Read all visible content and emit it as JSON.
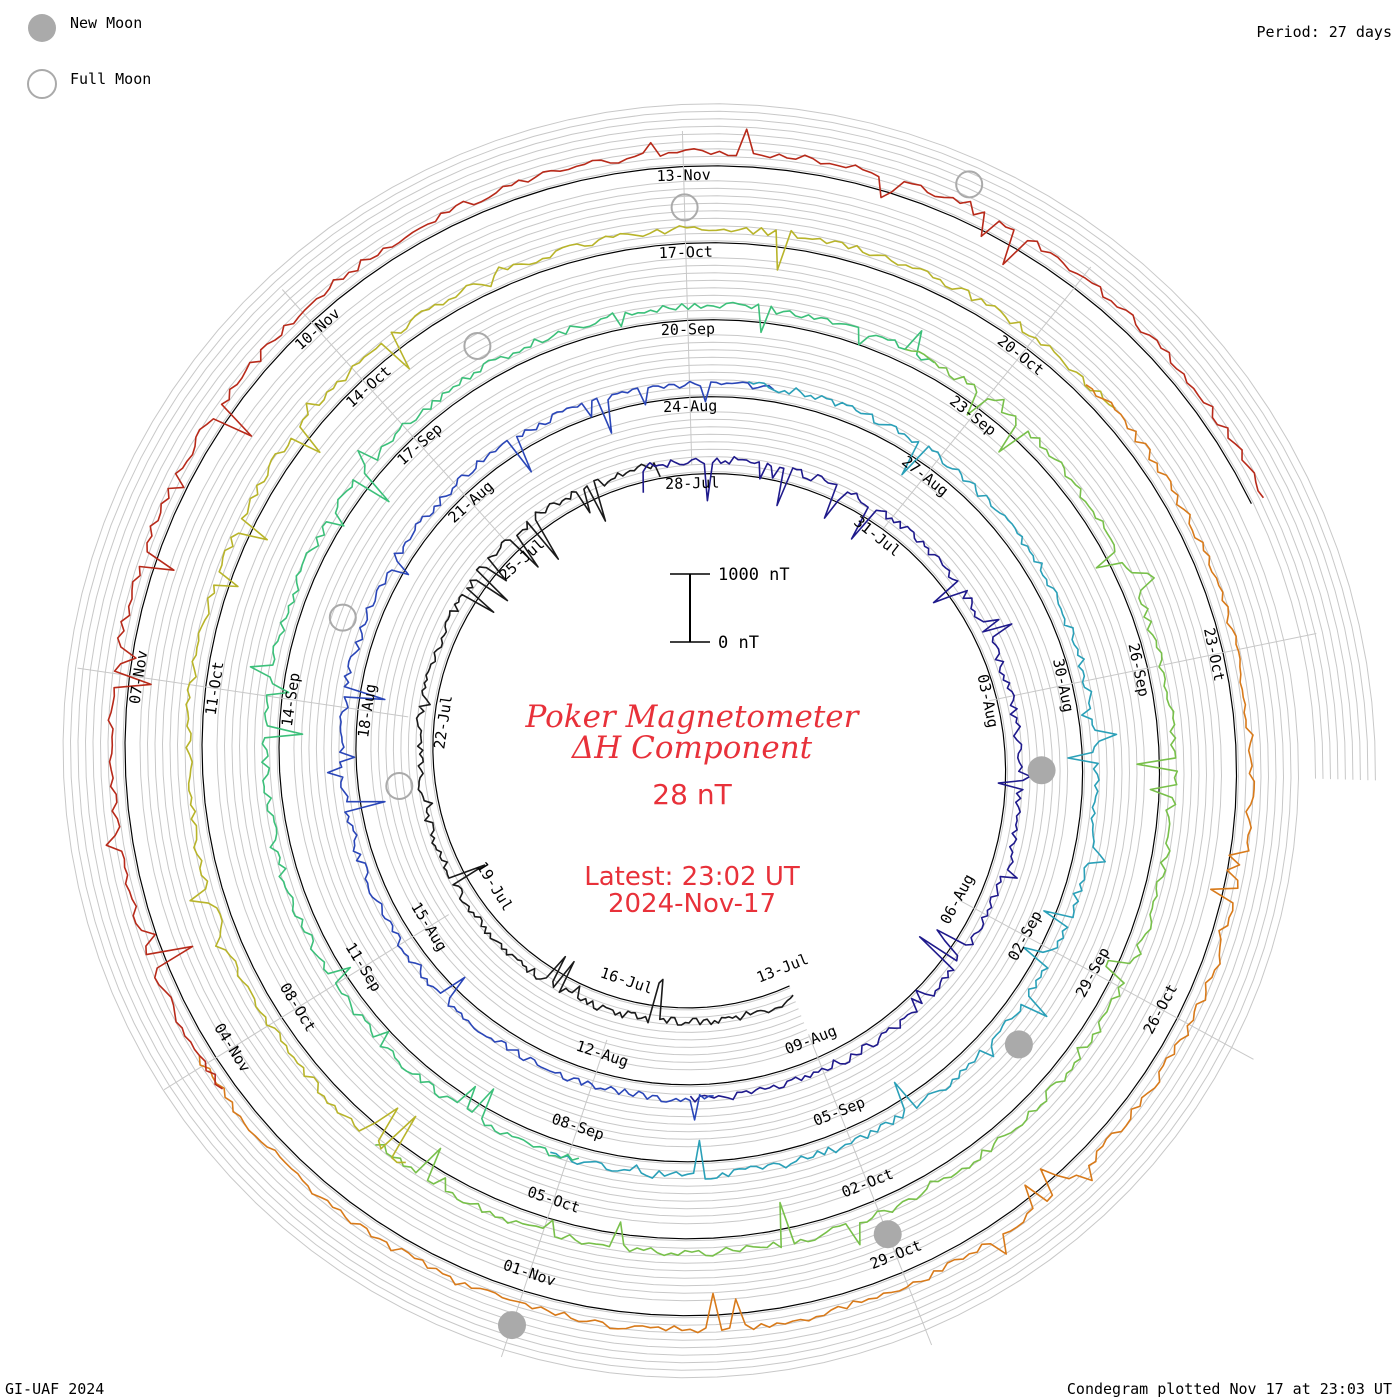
{
  "legend": {
    "new_moon": "New Moon",
    "full_moon": "Full Moon"
  },
  "period_label": "Period: 27 days",
  "scale": {
    "top_label": "1000 nT",
    "bottom_label": "0 nT"
  },
  "title_line1": "Poker Magnetometer",
  "title_line2": "ΔH Component",
  "current_value": "28 nT",
  "latest_time": "Latest: 23:02 UT",
  "latest_date": "2024-Nov-17",
  "footer_left": "GI-UAF 2024",
  "footer_right": "Condegram plotted Nov 17 at 23:03 UT",
  "colors": {
    "title_red": "#e8313a",
    "grid": "#c8c8c8",
    "moon_fill": "#aaaaaa"
  },
  "chart_data": {
    "type": "line",
    "title": "Poker Magnetometer ΔH Component",
    "period_days": 27,
    "scale_nT": [
      0,
      1000
    ],
    "series": [
      {
        "color": "#1a1a1a",
        "start": "2024-Jul-13"
      },
      {
        "color": "#1f1a8c",
        "start": "2024-Jul-13"
      },
      {
        "color": "#2a46b8",
        "start": "2024-Aug-09"
      },
      {
        "color": "#2aa0b8",
        "start": "2024-Sep-05"
      },
      {
        "color": "#3cc07a",
        "start": "2024-Sep-05"
      },
      {
        "color": "#78c04a",
        "start": "2024-Oct-02"
      },
      {
        "color": "#b8b42a",
        "start": "2024-Oct-02"
      },
      {
        "color": "#d87a1a",
        "start": "2024-Oct-29"
      },
      {
        "color": "#b82a1a",
        "start": "2024-Oct-29"
      }
    ],
    "ring_labels": [
      [
        "13-Jul",
        "16-Jul",
        "19-Jul",
        "22-Jul",
        "25-Jul",
        "28-Jul",
        "31-Jul",
        "03-Aug",
        "06-Aug"
      ],
      [
        "09-Aug",
        "12-Aug",
        "15-Aug",
        "18-Aug",
        "21-Aug",
        "24-Aug",
        "27-Aug",
        "30-Aug",
        "02-Sep"
      ],
      [
        "05-Sep",
        "08-Sep",
        "11-Sep",
        "14-Sep",
        "17-Sep",
        "20-Sep",
        "23-Sep",
        "26-Sep",
        "29-Sep"
      ],
      [
        "02-Oct",
        "05-Oct",
        "08-Oct",
        "11-Oct",
        "14-Oct",
        "17-Oct",
        "20-Oct",
        "23-Oct",
        "26-Oct"
      ],
      [
        "29-Oct",
        "01-Nov",
        "04-Nov",
        "07-Nov",
        "10-Nov",
        "13-Nov"
      ]
    ],
    "new_moons": [
      "2024-Aug-04",
      "2024-Sep-03",
      "2024-Oct-02",
      "2024-Nov-01"
    ],
    "full_moons": [
      "2024-Jul-21",
      "2024-Aug-19",
      "2024-Sep-18",
      "2024-Oct-17",
      "2024-Nov-15"
    ]
  }
}
